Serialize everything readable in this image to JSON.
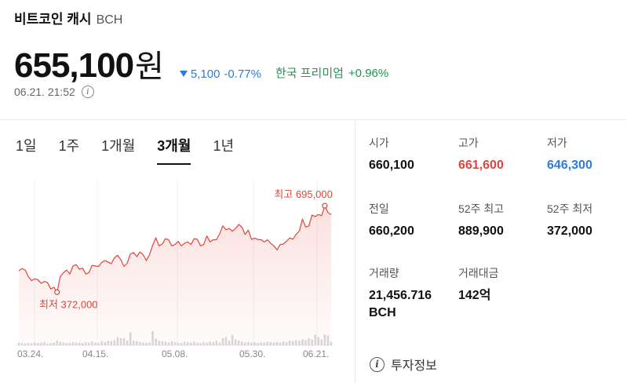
{
  "header": {
    "title": "비트코인 캐시",
    "symbol": "BCH"
  },
  "price": {
    "value": "655,100",
    "unit": "원"
  },
  "change": {
    "amount": "5,100",
    "percent": "-0.77%",
    "direction": "down",
    "color": "#2f7bd9"
  },
  "premium": {
    "label": "한국 프리미엄",
    "percent": "+0.96%",
    "color": "#1a9a4a"
  },
  "timestamp": "06.21. 21:52",
  "tabs": [
    {
      "label": "1일",
      "active": false
    },
    {
      "label": "1주",
      "active": false
    },
    {
      "label": "1개월",
      "active": false
    },
    {
      "label": "3개월",
      "active": true
    },
    {
      "label": "1년",
      "active": false
    }
  ],
  "stats": [
    {
      "label": "시가",
      "value": "660,100",
      "tone": "normal"
    },
    {
      "label": "고가",
      "value": "661,600",
      "tone": "red"
    },
    {
      "label": "저가",
      "value": "646,300",
      "tone": "blue"
    },
    {
      "label": "전일",
      "value": "660,200",
      "tone": "normal"
    },
    {
      "label": "52주 최고",
      "value": "889,900",
      "tone": "normal"
    },
    {
      "label": "52주 최저",
      "value": "372,000",
      "tone": "normal"
    },
    {
      "label": "거래량",
      "value": "21,456.716 BCH",
      "tone": "normal"
    },
    {
      "label": "거래대금",
      "value": "142억",
      "tone": "normal"
    }
  ],
  "invest_info": {
    "label": "투자정보",
    "icon": "info-circle-icon"
  },
  "chart_data": {
    "type": "line",
    "x_tick_labels": [
      "03.24.",
      "04.15.",
      "05.08.",
      "05.30.",
      "06.21."
    ],
    "high_label": "최고 695,000",
    "low_label": "최저 372,000",
    "line_color": "#e0453a",
    "ylim": [
      320000,
      760000
    ],
    "values": [
      452000,
      460000,
      455000,
      430000,
      415000,
      422000,
      418000,
      405000,
      412000,
      408000,
      384000,
      390000,
      372000,
      430000,
      445000,
      455000,
      440000,
      470000,
      475000,
      458000,
      462000,
      440000,
      445000,
      472000,
      470000,
      468000,
      483000,
      490000,
      485000,
      478000,
      500000,
      510000,
      493000,
      468000,
      480000,
      515000,
      520000,
      505000,
      522000,
      512000,
      490000,
      512000,
      548000,
      575000,
      545000,
      552000,
      572000,
      568000,
      545000,
      550000,
      562000,
      545000,
      555000,
      560000,
      550000,
      572000,
      570000,
      545000,
      550000,
      582000,
      560000,
      568000,
      568000,
      590000,
      620000,
      605000,
      610000,
      600000,
      610000,
      625000,
      615000,
      588000,
      604000,
      570000,
      574000,
      569000,
      568000,
      560000,
      568000,
      555000,
      545000,
      530000,
      550000,
      552000,
      562000,
      575000,
      570000,
      588000,
      600000,
      645000,
      615000,
      620000,
      660000,
      655000,
      662000,
      658000,
      695000,
      670000,
      662000
    ],
    "volume_level": [
      0.12,
      0.1,
      0.08,
      0.1,
      0.09,
      0.12,
      0.1,
      0.11,
      0.14,
      0.09,
      0.1,
      0.12,
      0.2,
      0.15,
      0.12,
      0.1,
      0.11,
      0.13,
      0.12,
      0.11,
      0.1,
      0.14,
      0.12,
      0.16,
      0.12,
      0.1,
      0.18,
      0.14,
      0.2,
      0.18,
      0.22,
      0.35,
      0.3,
      0.3,
      0.2,
      0.55,
      0.2,
      0.18,
      0.15,
      0.12,
      0.1,
      0.12,
      0.6,
      0.28,
      0.2,
      0.18,
      0.15,
      0.12,
      0.18,
      0.14,
      0.12,
      0.1,
      0.15,
      0.14,
      0.12,
      0.16,
      0.12,
      0.1,
      0.14,
      0.12,
      0.16,
      0.14,
      0.2,
      0.12,
      0.3,
      0.35,
      0.2,
      0.45,
      0.25,
      0.2,
      0.16,
      0.12,
      0.14,
      0.12,
      0.14,
      0.1,
      0.12,
      0.12,
      0.16,
      0.14,
      0.12,
      0.14,
      0.12,
      0.16,
      0.14,
      0.2,
      0.18,
      0.22,
      0.2,
      0.25,
      0.22,
      0.3,
      0.25,
      0.45,
      0.35,
      0.25,
      0.45,
      0.42,
      0.15
    ]
  }
}
